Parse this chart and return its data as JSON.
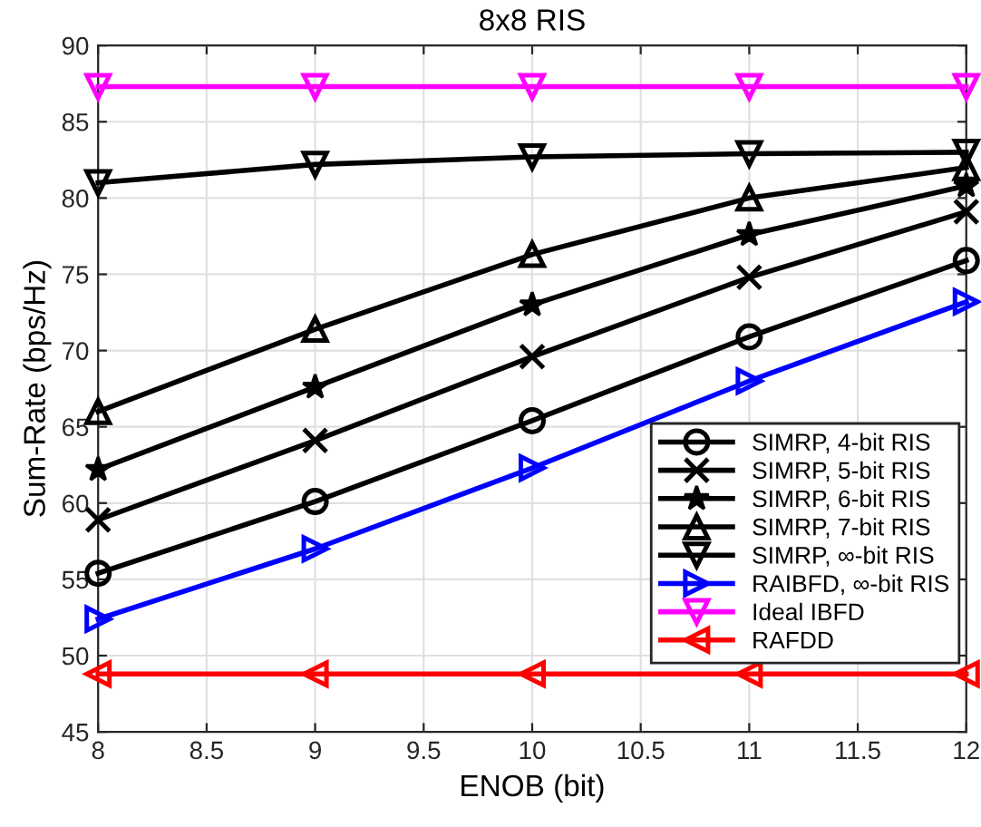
{
  "chart_data": {
    "type": "line",
    "title": "8x8 RIS",
    "xlabel": "ENOB (bit)",
    "ylabel": "Sum-Rate (bps/Hz)",
    "x": [
      8,
      9,
      10,
      11,
      12
    ],
    "series": [
      {
        "name": "SIMRP, 4-bit RIS",
        "color": "#000000",
        "marker": "circle",
        "values": [
          55.4,
          60.1,
          65.4,
          70.9,
          75.9
        ]
      },
      {
        "name": "SIMRP, 5-bit RIS",
        "color": "#000000",
        "marker": "cross",
        "values": [
          58.9,
          64.1,
          69.6,
          74.8,
          79.1
        ]
      },
      {
        "name": "SIMRP, 6-bit RIS",
        "color": "#000000",
        "marker": "star",
        "values": [
          62.2,
          67.6,
          73.0,
          77.6,
          80.8
        ]
      },
      {
        "name": "SIMRP, 7-bit RIS",
        "color": "#000000",
        "marker": "triangle",
        "values": [
          66.0,
          71.4,
          76.3,
          80.0,
          82.0
        ]
      },
      {
        "name": "SIMRP, ∞-bit RIS",
        "color": "#000000",
        "marker": "triangle-down",
        "values": [
          81.0,
          82.2,
          82.7,
          82.9,
          83.0
        ]
      },
      {
        "name": "RAIBFD, ∞-bit RIS",
        "color": "#0000ff",
        "marker": "triangle-right",
        "values": [
          52.4,
          57.0,
          62.3,
          68.0,
          73.2
        ]
      },
      {
        "name": "Ideal IBFD",
        "color": "#ff00ff",
        "marker": "triangle-down",
        "values": [
          87.3,
          87.3,
          87.3,
          87.3,
          87.3
        ]
      },
      {
        "name": "RAFDD",
        "color": "#ff0000",
        "marker": "triangle-left",
        "values": [
          48.8,
          48.8,
          48.8,
          48.8,
          48.8
        ]
      }
    ],
    "xlim": [
      8,
      12
    ],
    "xticks": [
      8,
      8.5,
      9,
      9.5,
      10,
      10.5,
      11,
      11.5,
      12
    ],
    "ylim": [
      45,
      90
    ],
    "yticks": [
      45,
      50,
      55,
      60,
      65,
      70,
      75,
      80,
      85,
      90
    ],
    "grid": true,
    "legend": "bottom right",
    "line_style": "solid"
  }
}
